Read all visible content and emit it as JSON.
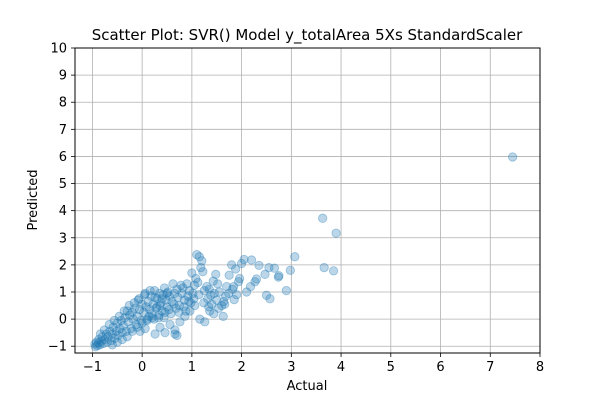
{
  "chart_data": {
    "type": "scatter",
    "title": "Scatter Plot: SVR() Model y_totalArea 5Xs StandardScaler",
    "xlabel": "Actual",
    "ylabel": "Predicted",
    "xlim": [
      -1.35,
      8.0
    ],
    "ylim": [
      -1.25,
      10.0
    ],
    "x_ticks": [
      -1,
      0,
      1,
      2,
      3,
      4,
      5,
      6,
      7,
      8
    ],
    "y_ticks": [
      -1,
      0,
      1,
      2,
      3,
      4,
      5,
      6,
      7,
      8,
      9,
      10
    ],
    "x_tick_labels": [
      "−1",
      "0",
      "1",
      "2",
      "3",
      "4",
      "5",
      "6",
      "7",
      "8"
    ],
    "y_tick_labels": [
      "−1",
      "0",
      "1",
      "2",
      "3",
      "4",
      "5",
      "6",
      "7",
      "8",
      "9",
      "10"
    ],
    "grid": true,
    "legend": "none",
    "marker_color": "#1f77b4",
    "marker_alpha": 0.3,
    "series": [
      {
        "points": [
          [
            7.45,
            5.98
          ],
          [
            3.63,
            3.72
          ],
          [
            3.9,
            3.17
          ],
          [
            3.07,
            2.3
          ],
          [
            3.66,
            1.9
          ],
          [
            3.85,
            1.78
          ],
          [
            2.98,
            1.8
          ],
          [
            2.75,
            1.6
          ],
          [
            2.74,
            1.55
          ],
          [
            2.9,
            1.05
          ],
          [
            2.66,
            1.88
          ],
          [
            2.55,
            1.9
          ],
          [
            2.35,
            1.98
          ],
          [
            2.3,
            1.48
          ],
          [
            2.27,
            1.38
          ],
          [
            2.18,
            1.2
          ],
          [
            2.1,
            1.0
          ],
          [
            2.05,
            2.2
          ],
          [
            2.2,
            2.18
          ],
          [
            2.5,
            0.88
          ],
          [
            2.57,
            0.75
          ],
          [
            2.47,
            1.65
          ],
          [
            2.0,
            2.05
          ],
          [
            1.96,
            1.5
          ],
          [
            1.94,
            1.38
          ],
          [
            1.88,
            1.85
          ],
          [
            1.85,
            0.72
          ],
          [
            1.9,
            0.9
          ],
          [
            1.82,
            1.1
          ],
          [
            1.8,
            2.0
          ],
          [
            1.75,
            1.62
          ],
          [
            1.7,
            1.2
          ],
          [
            1.68,
            0.85
          ],
          [
            1.66,
            0.55
          ],
          [
            1.63,
            0.1
          ],
          [
            1.6,
            0.5
          ],
          [
            1.55,
            1.0
          ],
          [
            1.52,
            1.3
          ],
          [
            1.5,
            0.7
          ],
          [
            1.45,
            0.95
          ],
          [
            1.48,
            1.65
          ],
          [
            1.43,
            1.4
          ],
          [
            1.4,
            0.55
          ],
          [
            1.38,
            0.88
          ],
          [
            1.35,
            1.1
          ],
          [
            1.32,
            0.75
          ],
          [
            1.3,
            1.2
          ],
          [
            1.25,
            1.05
          ],
          [
            1.22,
            1.75
          ],
          [
            1.2,
            2.15
          ],
          [
            1.18,
            1.9
          ],
          [
            1.15,
            2.3
          ],
          [
            1.1,
            2.38
          ],
          [
            1.12,
            1.35
          ],
          [
            1.08,
            1.5
          ],
          [
            1.05,
            1.25
          ],
          [
            1.02,
            0.95
          ],
          [
            1.0,
            1.7
          ],
          [
            0.98,
            0.6
          ],
          [
            0.95,
            1.05
          ],
          [
            0.92,
            0.85
          ],
          [
            0.9,
            1.3
          ],
          [
            0.88,
            0.3
          ],
          [
            0.85,
            0.7
          ],
          [
            0.82,
            1.15
          ],
          [
            0.8,
            0.95
          ],
          [
            0.78,
            1.25
          ],
          [
            0.75,
            0.5
          ],
          [
            0.72,
            0.8
          ],
          [
            0.7,
            1.1
          ],
          [
            0.68,
            0.4
          ],
          [
            0.65,
            0.95
          ],
          [
            0.62,
            1.3
          ],
          [
            0.6,
            0.65
          ],
          [
            0.58,
            0.2
          ],
          [
            0.55,
            0.85
          ],
          [
            0.52,
            1.0
          ],
          [
            0.5,
            0.45
          ],
          [
            0.48,
            0.7
          ],
          [
            0.45,
            1.15
          ],
          [
            0.42,
            0.9
          ],
          [
            0.4,
            0.3
          ],
          [
            0.38,
            0.6
          ],
          [
            0.35,
            0.95
          ],
          [
            0.33,
            0.05
          ],
          [
            0.3,
            0.75
          ],
          [
            0.28,
            0.4
          ],
          [
            0.25,
            1.05
          ],
          [
            0.22,
            0.55
          ],
          [
            0.2,
            0.2
          ],
          [
            0.18,
            0.85
          ],
          [
            0.15,
            0.35
          ],
          [
            0.12,
            0.65
          ],
          [
            0.1,
            0.0
          ],
          [
            0.08,
            0.45
          ],
          [
            0.05,
            0.9
          ],
          [
            0.03,
            0.25
          ],
          [
            0.0,
            0.55
          ],
          [
            -0.02,
            -0.05
          ],
          [
            -0.05,
            0.35
          ],
          [
            -0.08,
            0.7
          ],
          [
            -0.1,
            0.1
          ],
          [
            -0.12,
            -0.2
          ],
          [
            -0.15,
            0.4
          ],
          [
            -0.18,
            0.0
          ],
          [
            -0.2,
            0.25
          ],
          [
            -0.22,
            -0.35
          ],
          [
            -0.25,
            0.15
          ],
          [
            -0.28,
            -0.1
          ],
          [
            -0.3,
            0.3
          ],
          [
            -0.32,
            -0.45
          ],
          [
            -0.35,
            0.05
          ],
          [
            -0.38,
            -0.25
          ],
          [
            -0.4,
            -0.5
          ],
          [
            -0.42,
            -0.05
          ],
          [
            -0.45,
            -0.35
          ],
          [
            -0.48,
            -0.6
          ],
          [
            -0.5,
            -0.15
          ],
          [
            -0.52,
            -0.45
          ],
          [
            -0.55,
            -0.7
          ],
          [
            -0.58,
            -0.3
          ],
          [
            -0.6,
            -0.55
          ],
          [
            -0.62,
            -0.8
          ],
          [
            -0.65,
            -0.45
          ],
          [
            -0.68,
            -0.65
          ],
          [
            -0.7,
            -0.85
          ],
          [
            -0.72,
            -0.55
          ],
          [
            -0.75,
            -0.75
          ],
          [
            -0.78,
            -0.9
          ],
          [
            -0.8,
            -0.65
          ],
          [
            -0.82,
            -0.82
          ],
          [
            -0.85,
            -0.95
          ],
          [
            -0.87,
            -0.75
          ],
          [
            -0.88,
            -0.88
          ],
          [
            -0.9,
            -0.98
          ],
          [
            -0.92,
            -0.85
          ],
          [
            -0.94,
            -1.02
          ],
          [
            -0.95,
            -0.92
          ],
          [
            -0.84,
            -0.55
          ],
          [
            -0.76,
            -0.4
          ],
          [
            -0.66,
            -0.2
          ],
          [
            -0.56,
            -0.05
          ],
          [
            -0.46,
            0.1
          ],
          [
            -0.36,
            0.3
          ],
          [
            -0.26,
            0.5
          ],
          [
            -0.16,
            0.6
          ],
          [
            -0.06,
            0.75
          ],
          [
            0.06,
            0.95
          ],
          [
            0.16,
            1.05
          ],
          [
            0.26,
            0.8
          ],
          [
            0.36,
            0.5
          ],
          [
            0.46,
            0.25
          ],
          [
            0.56,
            -0.2
          ],
          [
            0.66,
            -0.4
          ],
          [
            0.46,
            -0.5
          ],
          [
            0.26,
            -0.55
          ],
          [
            0.06,
            -0.35
          ],
          [
            -0.04,
            -0.45
          ],
          [
            0.36,
            -0.3
          ],
          [
            0.76,
            -0.1
          ],
          [
            0.86,
            0.1
          ],
          [
            0.96,
            0.3
          ],
          [
            1.06,
            0.5
          ],
          [
            1.16,
            0.0
          ],
          [
            1.26,
            -0.1
          ],
          [
            1.36,
            0.3
          ],
          [
            0.7,
            -0.6
          ],
          [
            0.66,
            -0.55
          ],
          [
            0.24,
            0.0
          ],
          [
            0.14,
            0.1
          ],
          [
            0.34,
            0.15
          ],
          [
            0.44,
            0.05
          ],
          [
            0.54,
            0.35
          ],
          [
            0.64,
            0.55
          ],
          [
            0.74,
            0.25
          ],
          [
            0.84,
            0.45
          ],
          [
            0.94,
            0.65
          ],
          [
            1.04,
            0.75
          ],
          [
            1.14,
            0.9
          ],
          [
            1.24,
            0.6
          ],
          [
            1.34,
            0.45
          ],
          [
            1.44,
            0.2
          ],
          [
            1.54,
            0.4
          ],
          [
            1.64,
            0.65
          ],
          [
            1.74,
            0.95
          ],
          [
            1.84,
            1.2
          ],
          [
            -0.6,
            -0.95
          ],
          [
            -0.5,
            -0.85
          ],
          [
            -0.4,
            -0.75
          ],
          [
            -0.3,
            -0.65
          ],
          [
            -0.2,
            -0.45
          ],
          [
            -0.1,
            -0.3
          ],
          [
            0.0,
            -0.15
          ],
          [
            0.1,
            -0.05
          ],
          [
            0.2,
            0.05
          ],
          [
            0.3,
            0.45
          ],
          [
            0.4,
            0.75
          ],
          [
            0.5,
            0.95
          ]
        ]
      }
    ]
  }
}
